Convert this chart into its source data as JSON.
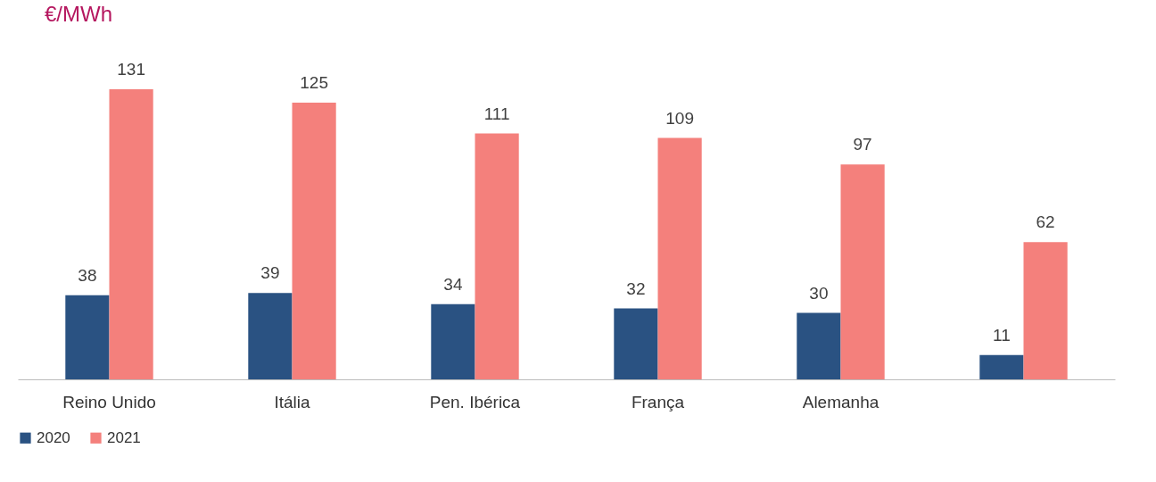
{
  "chart_data": {
    "type": "bar",
    "title": "€/MWh",
    "categories": [
      "Reino Unido",
      "Itália",
      "Pen. Ibérica",
      "França",
      "Alemanha",
      null
    ],
    "series": [
      {
        "name": "2020",
        "color": "#2a5282",
        "values": [
          38,
          39,
          34,
          32,
          30,
          11
        ]
      },
      {
        "name": "2021",
        "color": "#f4807c",
        "values": [
          131,
          125,
          111,
          109,
          97,
          62
        ]
      }
    ],
    "data_labels": true,
    "legend": "bottom left"
  }
}
